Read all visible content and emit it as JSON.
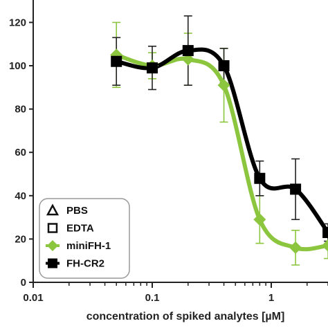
{
  "chart_data": {
    "type": "line",
    "xlabel": "concentration of spiked analytes [µM]",
    "ylabel": "",
    "xscale": "log",
    "xlim": [
      0.01,
      3.0
    ],
    "ylim": [
      0,
      130
    ],
    "x_ticks": [
      {
        "value": 0.01,
        "label": "0.01"
      },
      {
        "value": 0.1,
        "label": "0.1"
      },
      {
        "value": 1,
        "label": "1"
      }
    ],
    "y_ticks": [
      {
        "value": 0,
        "label": "0"
      },
      {
        "value": 20,
        "label": "20"
      },
      {
        "value": 40,
        "label": "40"
      },
      {
        "value": 60,
        "label": "60"
      },
      {
        "value": 80,
        "label": "80"
      },
      {
        "value": 100,
        "label": "100"
      },
      {
        "value": 120,
        "label": "120"
      }
    ],
    "grid": false,
    "legend": {
      "placement": "bottom-left",
      "entries": [
        {
          "name": "PBS",
          "marker": "triangle-open"
        },
        {
          "name": "EDTA",
          "marker": "square-open"
        },
        {
          "name": "miniFH-1",
          "marker": "diamond",
          "color": "#8cc63f"
        },
        {
          "name": "FH-CR2",
          "marker": "square",
          "color": "#000000"
        }
      ]
    },
    "series": [
      {
        "name": "miniFH-1",
        "color": "#8cc63f",
        "marker": "diamond",
        "x": [
          0.05,
          0.1,
          0.2,
          0.4,
          0.8,
          1.6,
          3.0
        ],
        "y": [
          105,
          100,
          103,
          91,
          29,
          16,
          17
        ],
        "error": [
          15,
          6,
          12,
          17,
          11,
          8,
          6
        ]
      },
      {
        "name": "FH-CR2",
        "color": "#000000",
        "marker": "square",
        "x": [
          0.05,
          0.1,
          0.2,
          0.4,
          0.8,
          1.6,
          3.0
        ],
        "y": [
          102,
          99,
          107,
          100,
          48,
          43,
          23
        ],
        "error": [
          11,
          10,
          16,
          8,
          8,
          14,
          4
        ]
      }
    ]
  }
}
